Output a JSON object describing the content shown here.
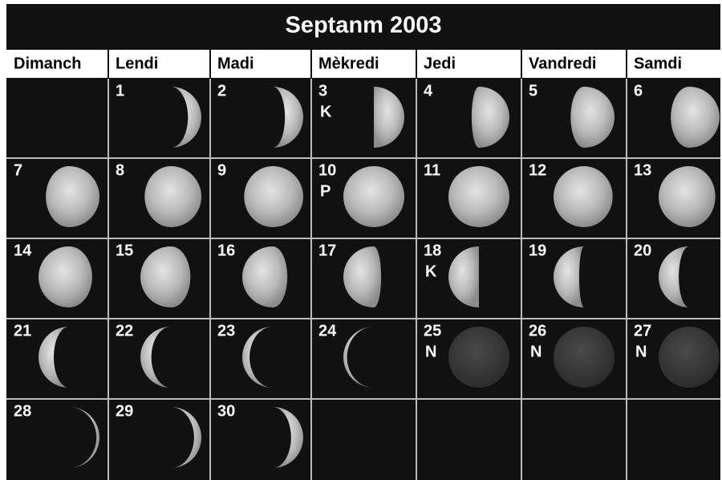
{
  "header": {
    "title": "Septanm 2003"
  },
  "weekdays": [
    "Dimanch",
    "Lendi",
    "Madi",
    "Mèkredi",
    "Jedi",
    "Vandredi",
    "Samdi"
  ],
  "days": [
    {
      "day": 1
    },
    {
      "day": 2
    },
    {
      "day": 3,
      "phase": "K"
    },
    {
      "day": 4
    },
    {
      "day": 5
    },
    {
      "day": 6
    },
    {
      "day": 7
    },
    {
      "day": 8
    },
    {
      "day": 9
    },
    {
      "day": 10,
      "phase": "P"
    },
    {
      "day": 11
    },
    {
      "day": 12
    },
    {
      "day": 13
    },
    {
      "day": 14
    },
    {
      "day": 15
    },
    {
      "day": 16
    },
    {
      "day": 17
    },
    {
      "day": 18,
      "phase": "K"
    },
    {
      "day": 19
    },
    {
      "day": 20
    },
    {
      "day": 21
    },
    {
      "day": 22
    },
    {
      "day": 23
    },
    {
      "day": 24
    },
    {
      "day": 25,
      "phase": "N"
    },
    {
      "day": 26,
      "phase": "N"
    },
    {
      "day": 27,
      "phase": "N"
    },
    {
      "day": 28
    },
    {
      "day": 29
    },
    {
      "day": 30
    }
  ]
}
